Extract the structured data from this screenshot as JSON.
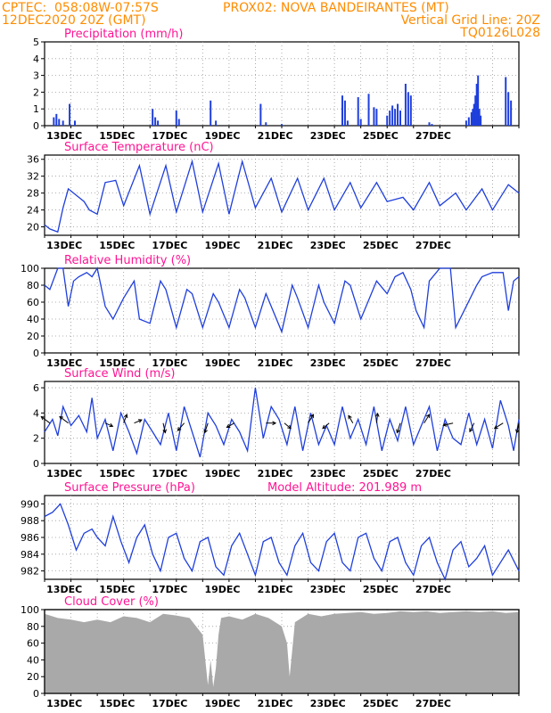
{
  "header": {
    "left_line1": "CPTEC:  058:08W-07:57S",
    "center_line1": "PROX02: NOVA BANDEIRANTES (MT)",
    "left_line2": "12DEC2020 20Z (GMT)",
    "right_line2": "Vertical Grid Line: 20Z",
    "right_line3": "TQ0126L028"
  },
  "x_ticks": [
    "13DEC",
    "15DEC",
    "17DEC",
    "19DEC",
    "21DEC",
    "23DEC",
    "25DEC",
    "27DEC"
  ],
  "model_altitude": "Model Altitude: 201.989 m",
  "colors": {
    "line": "#1f3fdc",
    "bar": "#1f3fdc",
    "cloud": "#a9a9a9",
    "title": "#ff1493",
    "header": "#ff8c00"
  },
  "chart_data": [
    {
      "type": "bar",
      "title": "Precipitation (mm/h)",
      "ylim": [
        0,
        5
      ],
      "yticks": [
        "0",
        "1",
        "2",
        "3",
        "4",
        "5"
      ],
      "x_units": "days from 12DEC2020 20Z",
      "x": [
        0.35,
        0.45,
        0.55,
        0.7,
        0.95,
        1.15,
        4.1,
        4.2,
        4.3,
        5.0,
        5.1,
        6.3,
        6.5,
        8.2,
        8.4,
        9.0,
        11.3,
        11.4,
        11.5,
        11.9,
        12.0,
        12.3,
        12.5,
        12.6,
        13.0,
        13.1,
        13.2,
        13.3,
        13.4,
        13.5,
        13.7,
        13.8,
        13.9,
        14.6,
        14.7,
        16.0,
        16.1,
        16.2,
        16.25,
        16.3,
        16.35,
        16.4,
        16.45,
        16.5,
        16.55,
        17.5,
        17.6,
        17.7
      ],
      "values": [
        0.5,
        0.7,
        0.4,
        0.3,
        1.3,
        0.3,
        1.0,
        0.5,
        0.3,
        0.9,
        0.4,
        1.5,
        0.3,
        1.3,
        0.2,
        0.1,
        1.8,
        1.5,
        0.3,
        1.7,
        0.4,
        1.9,
        1.1,
        1.0,
        0.6,
        0.9,
        1.2,
        1.0,
        1.3,
        0.9,
        2.5,
        2.0,
        1.8,
        0.2,
        0.1,
        0.3,
        0.5,
        0.8,
        1.0,
        1.3,
        1.8,
        2.5,
        3.0,
        1.0,
        0.6,
        2.9,
        2.0,
        1.5
      ]
    },
    {
      "type": "line",
      "title": "Surface Temperature (nC)",
      "ylim": [
        18,
        37
      ],
      "yticks": [
        "20",
        "24",
        "28",
        "32",
        "36"
      ],
      "series": [
        {
          "x": [
            0,
            0.2,
            0.5,
            0.7,
            0.9,
            1.3,
            1.5,
            1.7,
            2.0,
            2.3,
            2.7,
            3.0,
            3.6,
            4.0,
            4.6,
            5.0,
            5.6,
            6.0,
            6.6,
            7.0,
            7.5,
            8.0,
            8.6,
            9.0,
            9.6,
            10.0,
            10.6,
            11.0,
            11.6,
            12.0,
            12.6,
            13.0,
            13.6,
            14.0,
            14.6,
            15.0,
            15.6,
            16.0,
            16.6,
            17.0,
            17.6,
            18.0
          ],
          "values": [
            20.5,
            19.5,
            18.8,
            24.5,
            29.0,
            27.0,
            26.0,
            24.0,
            23.0,
            30.5,
            31.0,
            25.0,
            34.5,
            23.0,
            34.5,
            23.5,
            35.5,
            23.5,
            35.0,
            23.0,
            35.5,
            24.5,
            31.5,
            23.5,
            31.5,
            24.0,
            31.5,
            24.0,
            30.5,
            24.5,
            30.5,
            26.0,
            27.0,
            24.0,
            30.5,
            25.0,
            28.0,
            24.0,
            29.0,
            24.0,
            30.0,
            28.0
          ]
        }
      ]
    },
    {
      "type": "line",
      "title": "Relative Humidity (%)",
      "ylim": [
        0,
        100
      ],
      "yticks": [
        "0",
        "20",
        "40",
        "60",
        "80",
        "100"
      ],
      "series": [
        {
          "x": [
            0,
            0.2,
            0.5,
            0.7,
            0.9,
            1.1,
            1.3,
            1.6,
            1.8,
            2.0,
            2.3,
            2.6,
            3.0,
            3.4,
            3.6,
            4.0,
            4.4,
            4.6,
            5.0,
            5.4,
            5.6,
            6.0,
            6.4,
            6.6,
            7.0,
            7.4,
            7.6,
            8.0,
            8.4,
            8.6,
            9.0,
            9.4,
            9.6,
            10.0,
            10.4,
            10.6,
            11.0,
            11.4,
            11.6,
            12.0,
            12.4,
            12.6,
            13.0,
            13.3,
            13.6,
            13.9,
            14.1,
            14.4,
            14.6,
            15.0,
            15.4,
            15.6,
            16.0,
            16.4,
            16.6,
            17.0,
            17.4,
            17.6,
            17.8,
            18.0
          ],
          "values": [
            80,
            75,
            100,
            100,
            55,
            85,
            90,
            95,
            90,
            100,
            55,
            40,
            65,
            85,
            40,
            35,
            85,
            75,
            30,
            75,
            70,
            30,
            70,
            60,
            30,
            75,
            65,
            30,
            70,
            55,
            25,
            80,
            65,
            30,
            80,
            60,
            35,
            85,
            80,
            40,
            70,
            85,
            70,
            90,
            95,
            75,
            50,
            30,
            85,
            100,
            100,
            30,
            55,
            80,
            90,
            95,
            95,
            50,
            85,
            90
          ]
        }
      ]
    },
    {
      "type": "line",
      "title": "Surface Wind (m/s)",
      "ylim": [
        0,
        6.5
      ],
      "yticks": [
        "0",
        "2",
        "4",
        "6"
      ],
      "series": [
        {
          "x": [
            0,
            0.3,
            0.5,
            0.7,
            1.0,
            1.3,
            1.6,
            1.8,
            2.0,
            2.3,
            2.6,
            2.9,
            3.2,
            3.5,
            3.8,
            4.1,
            4.4,
            4.7,
            5.0,
            5.3,
            5.6,
            5.9,
            6.2,
            6.5,
            6.8,
            7.1,
            7.4,
            7.7,
            8.0,
            8.3,
            8.6,
            8.9,
            9.2,
            9.5,
            9.8,
            10.1,
            10.4,
            10.7,
            11.0,
            11.3,
            11.6,
            11.9,
            12.2,
            12.5,
            12.8,
            13.1,
            13.4,
            13.7,
            14.0,
            14.3,
            14.6,
            14.9,
            15.2,
            15.5,
            15.8,
            16.1,
            16.4,
            16.7,
            17.0,
            17.3,
            17.6,
            17.8,
            18.0
          ],
          "values": [
            2.5,
            3.5,
            2.2,
            4.5,
            3.0,
            3.8,
            2.5,
            5.2,
            2.0,
            3.5,
            1.0,
            4.0,
            2.5,
            0.8,
            3.5,
            2.5,
            1.5,
            4.0,
            1.0,
            4.5,
            2.5,
            0.5,
            4.0,
            3.0,
            1.5,
            3.5,
            2.5,
            1.0,
            6.0,
            2.0,
            4.5,
            3.5,
            1.5,
            4.5,
            1.0,
            4.0,
            1.5,
            3.0,
            1.5,
            4.5,
            2.0,
            3.5,
            1.5,
            4.5,
            1.0,
            3.5,
            1.8,
            4.5,
            1.5,
            3.0,
            4.5,
            1.0,
            3.5,
            2.0,
            1.5,
            4.0,
            1.5,
            3.5,
            1.2,
            5.0,
            3.0,
            1.0,
            3.5
          ]
        }
      ],
      "arrows": [
        {
          "x": 0.2,
          "u": -0.8,
          "v": 0.6
        },
        {
          "x": 0.9,
          "u": -0.8,
          "v": 0.6
        },
        {
          "x": 2.3,
          "u": 0.7,
          "v": -0.3
        },
        {
          "x": 3.0,
          "u": 0.3,
          "v": 0.8
        },
        {
          "x": 3.4,
          "u": 0.7,
          "v": 0.3
        },
        {
          "x": 4.5,
          "u": 0.2,
          "v": -0.9
        },
        {
          "x": 5.3,
          "u": -0.6,
          "v": -0.7
        },
        {
          "x": 6.2,
          "u": -0.3,
          "v": -0.9
        },
        {
          "x": 7.2,
          "u": -0.7,
          "v": -0.4
        },
        {
          "x": 8.4,
          "u": 0.9,
          "v": 0.0
        },
        {
          "x": 9.1,
          "u": 0.6,
          "v": -0.5
        },
        {
          "x": 10.0,
          "u": 0.5,
          "v": 0.8
        },
        {
          "x": 10.8,
          "u": -0.6,
          "v": -0.5
        },
        {
          "x": 11.7,
          "u": -0.4,
          "v": 0.7
        },
        {
          "x": 12.6,
          "u": 0.1,
          "v": 0.9
        },
        {
          "x": 13.5,
          "u": -0.3,
          "v": -0.9
        },
        {
          "x": 14.4,
          "u": 0.5,
          "v": 0.8
        },
        {
          "x": 15.5,
          "u": -0.9,
          "v": -0.2
        },
        {
          "x": 16.3,
          "u": -0.4,
          "v": -0.8
        },
        {
          "x": 17.4,
          "u": -0.8,
          "v": -0.5
        },
        {
          "x": 18.0,
          "u": -0.2,
          "v": -0.9
        }
      ]
    },
    {
      "type": "line",
      "title": "Surface Pressure (hPa)",
      "ylim": [
        981,
        991
      ],
      "yticks": [
        "982",
        "984",
        "986",
        "988",
        "990"
      ],
      "series": [
        {
          "x": [
            0,
            0.3,
            0.6,
            0.9,
            1.2,
            1.5,
            1.8,
            2.0,
            2.3,
            2.6,
            2.9,
            3.2,
            3.5,
            3.8,
            4.1,
            4.4,
            4.7,
            5.0,
            5.3,
            5.6,
            5.9,
            6.2,
            6.5,
            6.8,
            7.1,
            7.4,
            7.7,
            8.0,
            8.3,
            8.6,
            8.9,
            9.2,
            9.5,
            9.8,
            10.1,
            10.4,
            10.7,
            11.0,
            11.3,
            11.6,
            11.9,
            12.2,
            12.5,
            12.8,
            13.1,
            13.4,
            13.7,
            14.0,
            14.3,
            14.6,
            14.9,
            15.2,
            15.5,
            15.8,
            16.1,
            16.4,
            16.7,
            17.0,
            17.3,
            17.6,
            18.0
          ],
          "values": [
            988.5,
            989.0,
            990.0,
            987.5,
            984.5,
            986.5,
            987.0,
            986.0,
            985.0,
            988.5,
            985.5,
            983.0,
            986.0,
            987.5,
            984.0,
            982.0,
            986.0,
            986.5,
            983.5,
            982.0,
            985.5,
            986.0,
            982.5,
            981.5,
            985.0,
            986.5,
            984.0,
            981.5,
            985.5,
            986.0,
            983.0,
            981.5,
            985.0,
            986.5,
            983.0,
            982.0,
            985.5,
            986.5,
            983.0,
            982.0,
            986.0,
            986.5,
            983.5,
            982.0,
            985.5,
            986.0,
            983.0,
            981.5,
            985.0,
            986.0,
            983.0,
            981.0,
            984.5,
            985.5,
            982.5,
            983.5,
            985.0,
            981.5,
            983.0,
            984.5,
            982.0
          ]
        }
      ]
    },
    {
      "type": "area",
      "title": "Cloud Cover (%)",
      "ylim": [
        0,
        100
      ],
      "yticks": [
        "0",
        "20",
        "40",
        "60",
        "80",
        "100"
      ],
      "series": [
        {
          "x": [
            0,
            0.5,
            1.0,
            1.5,
            2.0,
            2.5,
            3.0,
            3.5,
            4.0,
            4.5,
            5.0,
            5.5,
            6.0,
            6.2,
            6.3,
            6.4,
            6.5,
            6.6,
            6.7,
            7.0,
            7.5,
            8.0,
            8.5,
            9.0,
            9.2,
            9.3,
            9.5,
            10.0,
            10.5,
            11.0,
            11.5,
            12.0,
            12.5,
            13.0,
            13.5,
            14.0,
            14.5,
            15.0,
            15.5,
            16.0,
            16.5,
            17.0,
            17.5,
            18.0
          ],
          "values": [
            95,
            90,
            88,
            85,
            88,
            85,
            92,
            90,
            85,
            95,
            93,
            90,
            70,
            10,
            40,
            8,
            30,
            70,
            90,
            92,
            88,
            95,
            90,
            80,
            60,
            20,
            85,
            95,
            92,
            95,
            96,
            97,
            95,
            96,
            98,
            97,
            98,
            96,
            97,
            98,
            97,
            98,
            96,
            97
          ]
        }
      ]
    }
  ]
}
